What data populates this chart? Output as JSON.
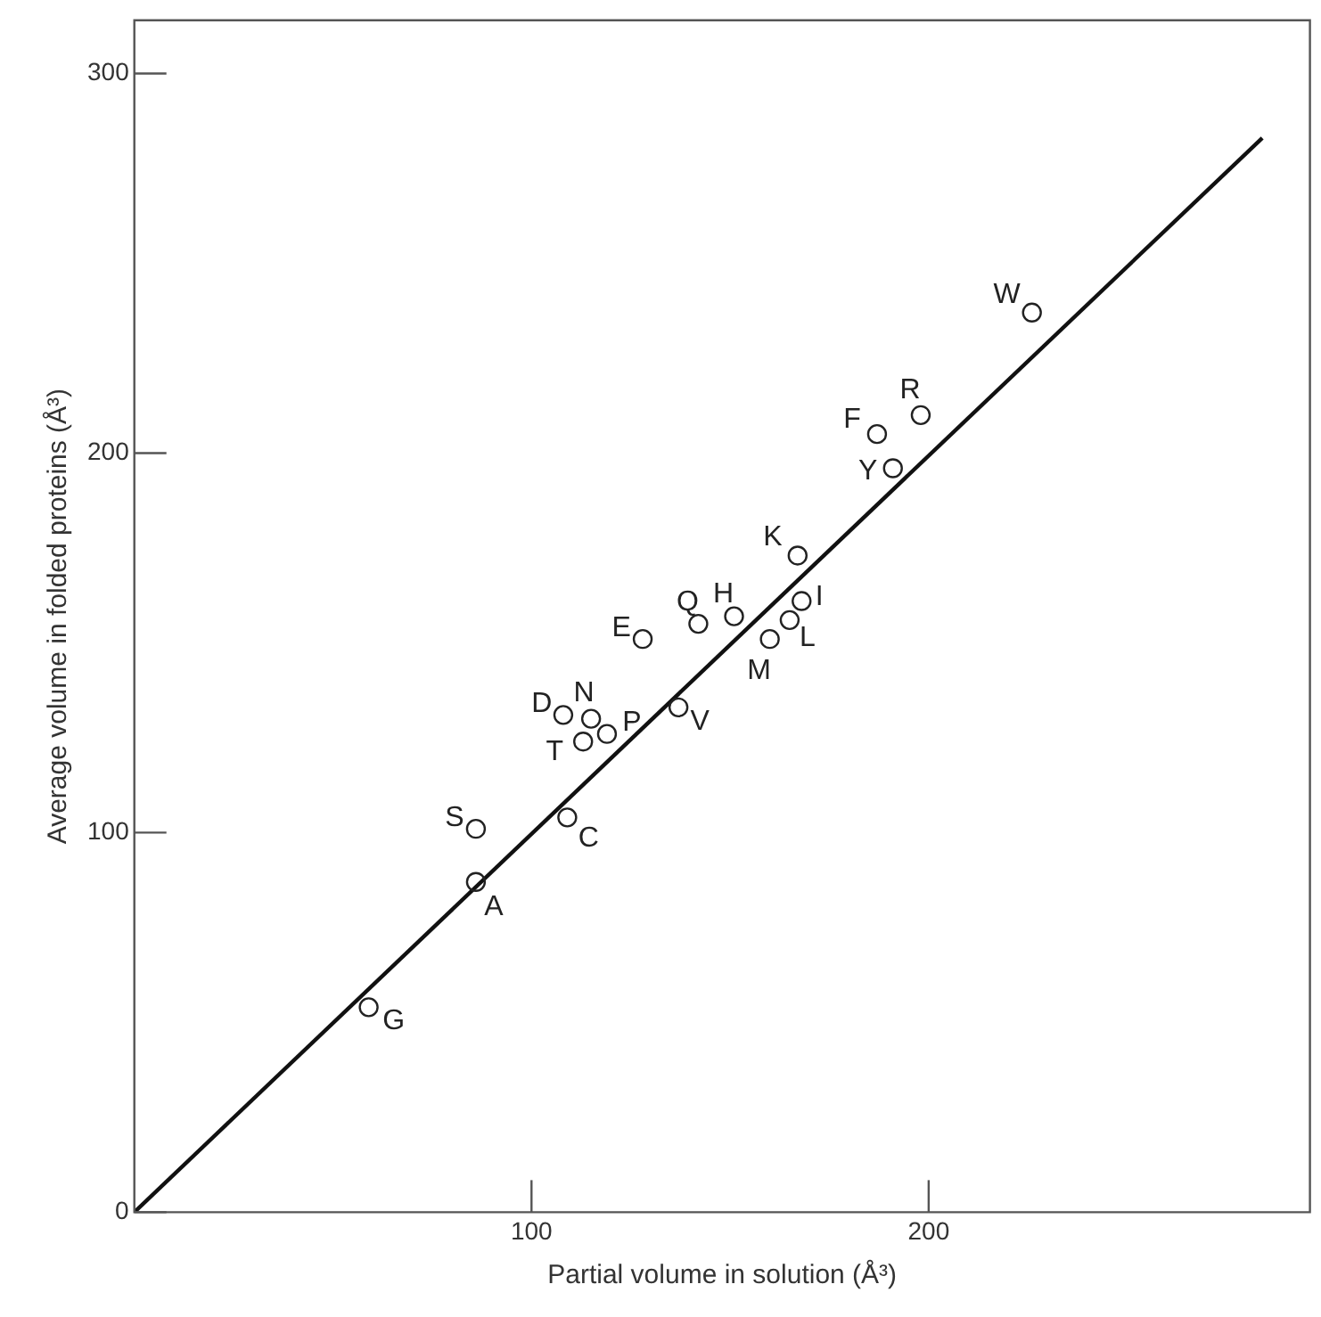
{
  "chart_data": {
    "type": "scatter",
    "xlabel": "Partial volume in solution (Å³)",
    "ylabel": "Average volume in folded proteins (Å³)",
    "xlim": [
      0,
      296
    ],
    "ylim": [
      0,
      314
    ],
    "xticks": [
      100,
      200
    ],
    "yticks": [
      0,
      100,
      200,
      300
    ],
    "grid": false,
    "legend": false,
    "marker": "none",
    "series": [
      {
        "color": "#222222",
        "marker": "circle",
        "x": [
          59,
          86,
          86,
          109,
          128,
          142,
          151,
          168,
          165,
          160,
          108,
          115,
          119,
          113,
          137,
          226,
          198,
          187,
          191,
          167
        ],
        "values": [
          54,
          87,
          101,
          104,
          151,
          155,
          157,
          161,
          156,
          151,
          131,
          130,
          126,
          124,
          133,
          237,
          210,
          205,
          196,
          173
        ]
      },
      {
        "type": "line",
        "color": "#111111",
        "x": [
          0,
          284
        ],
        "values": [
          0,
          283
        ]
      }
    ],
    "annotations": [
      {
        "text": "G",
        "x": 59,
        "y": 54
      },
      {
        "text": "A",
        "x": 86,
        "y": 87
      },
      {
        "text": "S",
        "x": 86,
        "y": 101
      },
      {
        "text": "C",
        "x": 109,
        "y": 104
      },
      {
        "text": "E",
        "x": 128,
        "y": 151
      },
      {
        "text": "Q",
        "x": 142,
        "y": 155
      },
      {
        "text": "H",
        "x": 151,
        "y": 157
      },
      {
        "text": "I",
        "x": 168,
        "y": 161
      },
      {
        "text": "L",
        "x": 165,
        "y": 156
      },
      {
        "text": "M",
        "x": 160,
        "y": 151
      },
      {
        "text": "D",
        "x": 108,
        "y": 131
      },
      {
        "text": "N",
        "x": 115,
        "y": 130
      },
      {
        "text": "P",
        "x": 119,
        "y": 126
      },
      {
        "text": "T",
        "x": 113,
        "y": 124
      },
      {
        "text": "V",
        "x": 137,
        "y": 133
      },
      {
        "text": "W",
        "x": 226,
        "y": 237
      },
      {
        "text": "R",
        "x": 198,
        "y": 210
      },
      {
        "text": "F",
        "x": 187,
        "y": 205
      },
      {
        "text": "Y",
        "x": 191,
        "y": 196
      },
      {
        "text": "K",
        "x": 167,
        "y": 173
      }
    ]
  }
}
